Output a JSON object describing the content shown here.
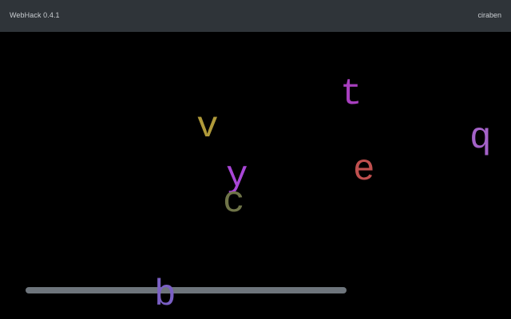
{
  "header": {
    "app_title": "WebHack 0.4.1",
    "user_name": "ciraben"
  },
  "monsters": [
    {
      "glyph": "t",
      "color": "#a83fbf"
    },
    {
      "glyph": "v",
      "color": "#b09a3a"
    },
    {
      "glyph": "q",
      "color": "#a462c8"
    },
    {
      "glyph": "e",
      "color": "#c0504f"
    },
    {
      "glyph": "y",
      "color": "#a846d6"
    },
    {
      "glyph": "c",
      "color": "#6f7448"
    },
    {
      "glyph": "b",
      "color": "#7a5fc4"
    }
  ],
  "bar_color": "#6e757c"
}
